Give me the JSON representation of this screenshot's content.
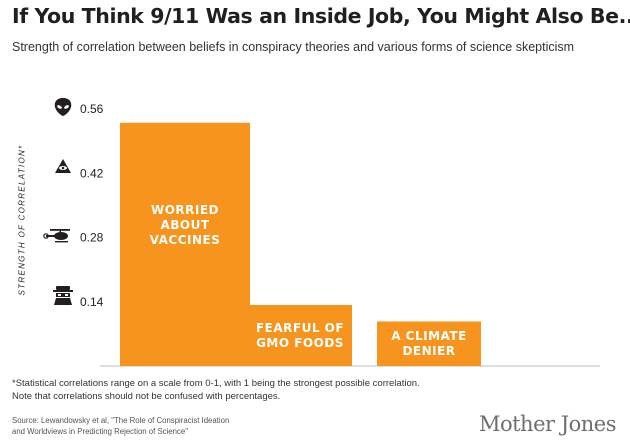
{
  "header": {
    "title": "If You Think 9/11 Was an Inside Job, You Might Also Be...",
    "subtitle": "Strength of correlation between beliefs in conspiracy theories and various forms of science skepticism"
  },
  "chart_data": {
    "type": "bar",
    "ylabel": "STRENGTH OF CORRELATION*",
    "ylim": [
      0,
      0.56
    ],
    "yticks": [
      "0.14",
      "0.28",
      "0.42",
      "0.56"
    ],
    "ytick_values": [
      0.14,
      0.28,
      0.42,
      0.56
    ],
    "ytick_icons": [
      "burglar-icon",
      "helicopter-icon",
      "illuminati-eye-icon",
      "alien-icon"
    ],
    "categories": [
      [
        "WORRIED",
        "ABOUT",
        "VACCINES"
      ],
      [
        "FEARFUL OF",
        "GMO FOODS"
      ],
      [
        "A CLIMATE",
        "DENIER"
      ]
    ],
    "values": [
      0.53,
      0.133,
      0.097
    ],
    "bar_color": "#f7941d",
    "grid": false,
    "legend": "none"
  },
  "footnote": {
    "line1": "*Statistical correlations range on a scale from 0-1, with 1 being the strongest possible correlation.",
    "line2": "Note that correlations should not be confused with percentages."
  },
  "source": {
    "line1": "Source: Lewandowsky et al, \"The Role of Conspiracist Ideation",
    "line2": "and Worldviews in Predicting Rejection of Science\""
  },
  "brand": "Mother Jones"
}
